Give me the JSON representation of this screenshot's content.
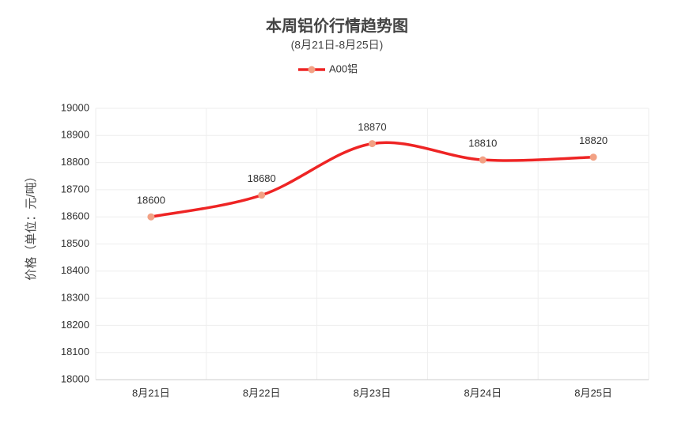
{
  "chart_data": {
    "type": "line",
    "title": "本周铝价行情趋势图",
    "subtitle": "(8月21日-8月25日)",
    "y_label": "价格（单位：元/吨）",
    "categories": [
      "8月21日",
      "8月22日",
      "8月23日",
      "8月24日",
      "8月25日"
    ],
    "series": [
      {
        "name": "A00铝",
        "color": "#ee2424",
        "marker_color": "#f2a184",
        "values": [
          18600,
          18680,
          18870,
          18810,
          18820
        ]
      }
    ],
    "ylim": [
      18000,
      19000
    ],
    "yticks": [
      18000,
      18100,
      18200,
      18300,
      18400,
      18500,
      18600,
      18700,
      18800,
      18900,
      19000
    ],
    "grid": true,
    "smooth": true,
    "legend": "top"
  }
}
